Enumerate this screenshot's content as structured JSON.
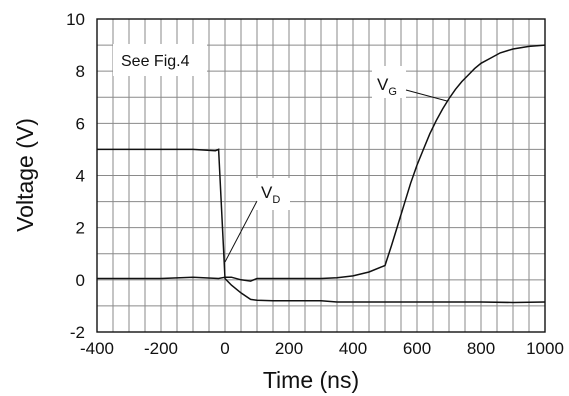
{
  "chart_data": {
    "type": "line",
    "title": "",
    "xlabel": "Time (ns)",
    "ylabel": "Voltage (V)",
    "xlim": [
      -400,
      1000
    ],
    "ylim": [
      -2,
      10
    ],
    "x_ticks": [
      -400,
      -200,
      0,
      200,
      400,
      600,
      800,
      1000
    ],
    "y_ticks": [
      -2,
      0,
      2,
      4,
      6,
      8,
      10
    ],
    "x_tick_labels": [
      "-400",
      "-200",
      "0",
      "200",
      "400",
      "600",
      "800",
      "1000"
    ],
    "y_tick_labels": [
      "-2",
      "0",
      "2",
      "4",
      "6",
      "8",
      "10"
    ],
    "grid": true,
    "grid_x_step": 50,
    "grid_y_step": 1,
    "annotations": {
      "note": "See Fig.4",
      "vg_main": "V",
      "vg_sub": "G",
      "vd_main": "V",
      "vd_sub": "D"
    },
    "series": [
      {
        "name": "VG",
        "x": [
          -400,
          -300,
          -200,
          -100,
          -20,
          0,
          20,
          50,
          80,
          100,
          200,
          300,
          350,
          400,
          450,
          500,
          520,
          540,
          560,
          580,
          600,
          620,
          640,
          660,
          680,
          700,
          720,
          740,
          760,
          780,
          800,
          830,
          860,
          900,
          950,
          1000
        ],
        "y": [
          0.05,
          0.05,
          0.05,
          0.1,
          0.05,
          0.1,
          0.1,
          0.0,
          -0.05,
          0.05,
          0.05,
          0.05,
          0.08,
          0.15,
          0.3,
          0.55,
          1.3,
          2.1,
          2.9,
          3.7,
          4.4,
          5.0,
          5.6,
          6.1,
          6.55,
          6.95,
          7.3,
          7.6,
          7.85,
          8.1,
          8.3,
          8.5,
          8.7,
          8.85,
          8.95,
          9.0
        ]
      },
      {
        "name": "VD",
        "x": [
          -400,
          -300,
          -200,
          -100,
          -30,
          -20,
          0,
          20,
          50,
          80,
          100,
          150,
          200,
          300,
          350,
          400,
          500,
          600,
          700,
          800,
          900,
          1000
        ],
        "y": [
          5.0,
          5.0,
          5.0,
          5.0,
          4.95,
          5.0,
          0.05,
          -0.2,
          -0.5,
          -0.75,
          -0.78,
          -0.8,
          -0.8,
          -0.8,
          -0.85,
          -0.85,
          -0.85,
          -0.85,
          -0.85,
          -0.85,
          -0.87,
          -0.85
        ]
      }
    ]
  }
}
